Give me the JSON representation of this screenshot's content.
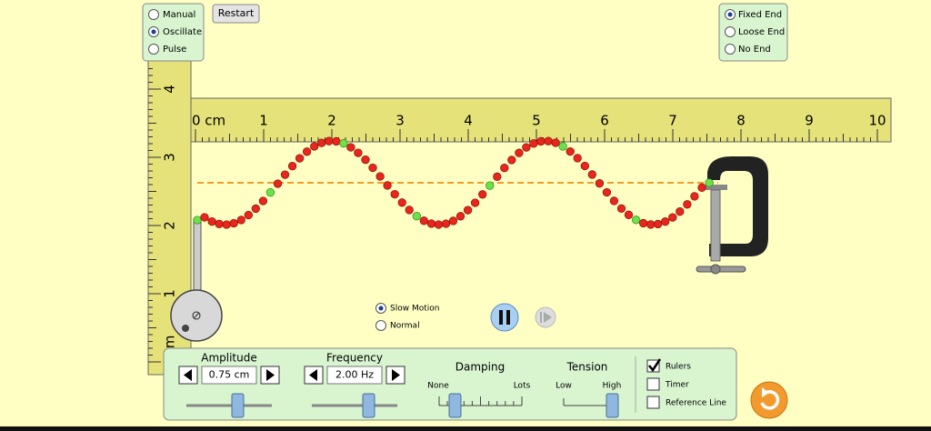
{
  "mode_panel": {
    "options": [
      "Manual",
      "Oscillate",
      "Pulse"
    ]
  },
  "restart_button": "Restart",
  "end_panel": {
    "options": [
      "Fixed End",
      "Loose End",
      "No End"
    ]
  },
  "horizontal_ruler": {
    "labels": [
      "0 cm",
      "1",
      "2",
      "3",
      "4",
      "5",
      "6",
      "7",
      "8",
      "9",
      "10"
    ]
  },
  "vertical_ruler": {
    "labels": [
      "4",
      "3",
      "2",
      "1",
      "cm"
    ]
  },
  "speed": {
    "options": [
      "Slow Motion",
      "Normal"
    ]
  },
  "controls": {
    "amplitude": {
      "label": "Amplitude",
      "value": "0.75 cm"
    },
    "frequency": {
      "label": "Frequency",
      "value": "2.00 Hz"
    },
    "damping": {
      "label": "Damping",
      "min": "None",
      "max": "Lots"
    },
    "tension": {
      "label": "Tension",
      "min": "Low",
      "max": "High"
    },
    "checkboxes": [
      "Rulers",
      "Timer",
      "Reference Line"
    ]
  }
}
